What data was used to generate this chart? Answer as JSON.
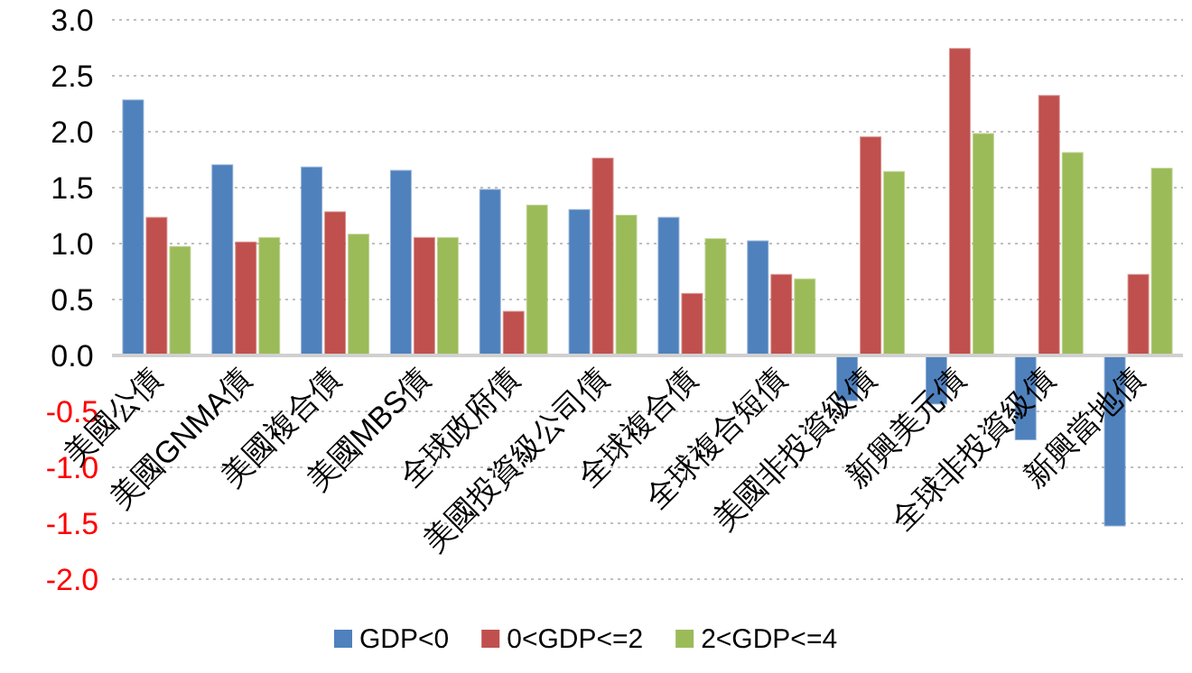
{
  "chart_data": {
    "type": "bar",
    "categories": [
      "美國公債",
      "美國GNMA債",
      "美國複合債",
      "美國MBS債",
      "全球政府債",
      "美國投資級公司債",
      "全球複合債",
      "全球複合短債",
      "美國非投資級債",
      "新興美元債",
      "全球非投資級債",
      "新興當地債"
    ],
    "series": [
      {
        "name": "GDP<0",
        "color": "#4f81bd",
        "values": [
          2.28,
          1.7,
          1.68,
          1.65,
          1.48,
          1.3,
          1.23,
          1.02,
          -0.4,
          -0.43,
          -0.75,
          -1.52
        ]
      },
      {
        "name": "0<GDP<=2",
        "color": "#c0504d",
        "values": [
          1.23,
          1.01,
          1.28,
          1.05,
          0.39,
          1.76,
          0.55,
          0.72,
          1.95,
          2.74,
          2.32,
          0.72
        ]
      },
      {
        "name": "2<GDP<=4",
        "color": "#9bbb59",
        "values": [
          0.97,
          1.05,
          1.08,
          1.05,
          1.34,
          1.25,
          1.04,
          0.68,
          1.64,
          1.98,
          1.81,
          1.67
        ]
      }
    ],
    "ylim": [
      -2,
      3
    ],
    "yticks": [
      {
        "value": -2,
        "label": "-2.0"
      },
      {
        "value": -1.5,
        "label": "-1.5"
      },
      {
        "value": -1,
        "label": "-1.0"
      },
      {
        "value": -0.5,
        "label": "-0.5"
      },
      {
        "value": 0,
        "label": "0.0"
      },
      {
        "value": 0.5,
        "label": "0.5"
      },
      {
        "value": 1,
        "label": "1.0"
      },
      {
        "value": 1.5,
        "label": "1.5"
      },
      {
        "value": 2,
        "label": "2.0"
      },
      {
        "value": 2.5,
        "label": "2.5"
      },
      {
        "value": 3,
        "label": "3.0"
      }
    ],
    "grid": "y",
    "legend": "bottom"
  }
}
